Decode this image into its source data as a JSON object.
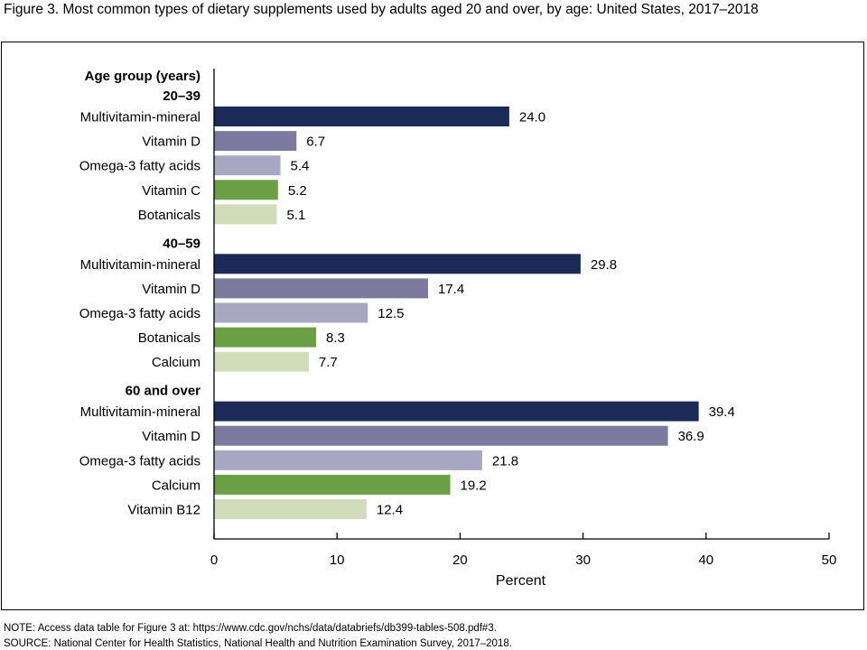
{
  "title": "Figure 3. Most common types of dietary supplements used by adults aged 20 and over, by age: United States, 2017–2018",
  "note": "NOTE: Access data table for Figure 3 at: https://www.cdc.gov/nchs/data/databriefs/db399-tables-508.pdf#3.",
  "source": "SOURCE: National Center for Health Statistics, National Health and Nutrition Examination Survey, 2017–2018.",
  "colors": [
    "#1b2a57",
    "#7c7b9f",
    "#a8a7c2",
    "#6a9f45",
    "#d1ddba"
  ],
  "chart_data": {
    "type": "bar",
    "orientation": "horizontal",
    "title": "Figure 3. Most common types of dietary supplements used by adults aged 20 and over, by age: United States, 2017–2018",
    "group_axis_label": "Age group (years)",
    "xlabel": "Percent",
    "xlim": [
      0,
      50
    ],
    "xticks": [
      0,
      10,
      20,
      30,
      40,
      50
    ],
    "grid": false,
    "data_labels": true,
    "groups": [
      {
        "name": "20–39",
        "categories": [
          "Multivitamin-mineral",
          "Vitamin D",
          "Omega-3 fatty acids",
          "Vitamin C",
          "Botanicals"
        ],
        "values": [
          24.0,
          6.7,
          5.4,
          5.2,
          5.1
        ],
        "labels": [
          "24.0",
          "6.7",
          "5.4",
          "5.2",
          "5.1"
        ]
      },
      {
        "name": "40–59",
        "categories": [
          "Multivitamin-mineral",
          "Vitamin D",
          "Omega-3 fatty acids",
          "Botanicals",
          "Calcium"
        ],
        "values": [
          29.8,
          17.4,
          12.5,
          8.3,
          7.7
        ],
        "labels": [
          "29.8",
          "17.4",
          "12.5",
          "8.3",
          "7.7"
        ]
      },
      {
        "name": "60 and over",
        "categories": [
          "Multivitamin-mineral",
          "Vitamin D",
          "Omega-3 fatty acids",
          "Calcium",
          "Vitamin B12"
        ],
        "values": [
          39.4,
          36.9,
          21.8,
          19.2,
          12.4
        ],
        "labels": [
          "39.4",
          "36.9",
          "21.8",
          "19.2",
          "12.4"
        ]
      }
    ]
  }
}
